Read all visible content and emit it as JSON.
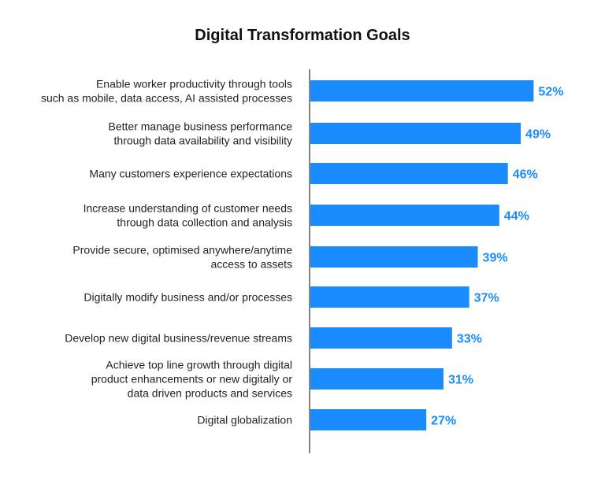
{
  "chart_data": {
    "type": "bar",
    "orientation": "horizontal",
    "title": "Digital Transformation Goals",
    "categories": [
      [
        "Enable worker productivity through tools",
        "such as mobile, data access, AI assisted processes"
      ],
      [
        "Better manage business performance",
        "through data availability and visibility"
      ],
      [
        "Many customers experience expectations"
      ],
      [
        "Increase understanding of customer needs",
        "through data collection and analysis"
      ],
      [
        "Provide secure, optimised anywhere/anytime",
        "access to assets"
      ],
      [
        "Digitally modify business and/or processes"
      ],
      [
        "Develop new digital business/revenue streams"
      ],
      [
        "Achieve top line growth through digital",
        "product enhancements or new digitally or",
        "data driven products and services"
      ],
      [
        "Digital globalization"
      ]
    ],
    "values": [
      52,
      49,
      46,
      44,
      39,
      37,
      33,
      31,
      27
    ],
    "value_labels": [
      "52%",
      "49%",
      "46%",
      "44%",
      "39%",
      "37%",
      "33%",
      "31%",
      "27%"
    ],
    "unit": "%",
    "xlim": [
      0,
      60
    ],
    "grid": false,
    "legend": "none",
    "bar_color": "#1a8cff",
    "label_color": "#1a8cff"
  }
}
